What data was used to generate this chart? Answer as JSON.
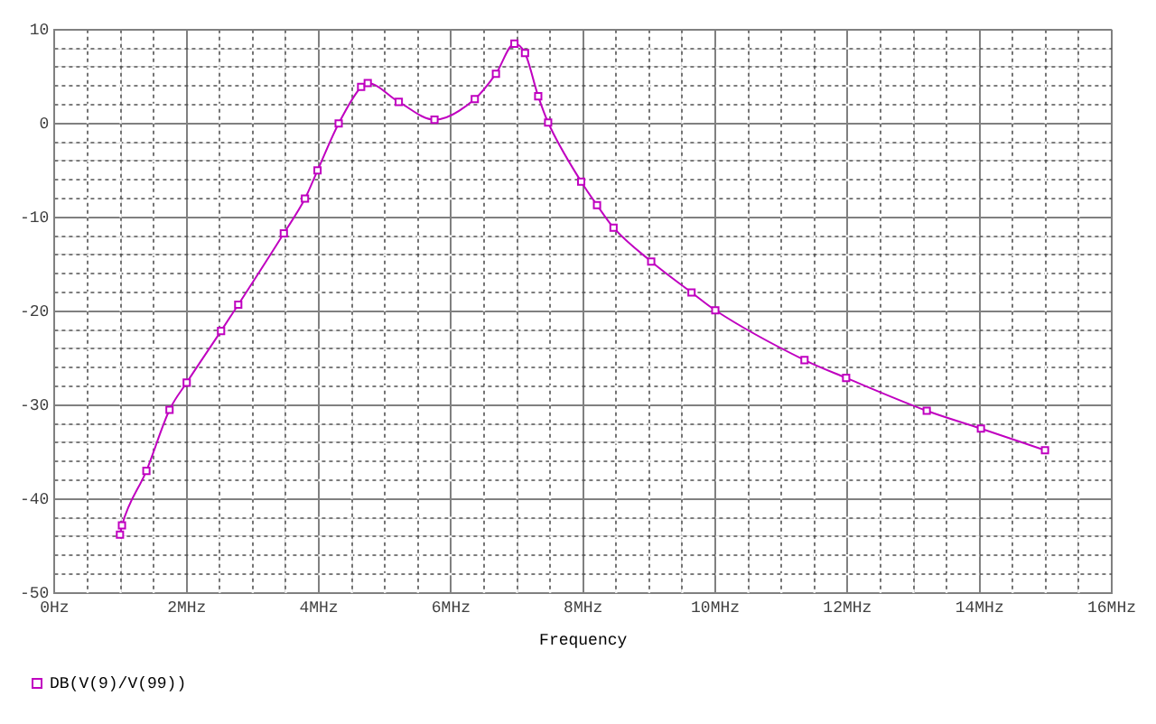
{
  "chart_data": {
    "type": "line",
    "xlabel": "Frequency",
    "legend": "bottom left",
    "grid": true,
    "marker": "square",
    "line_style": "solid",
    "x": [
      0.99,
      1.02,
      1.39,
      1.74,
      2.0,
      2.52,
      2.78,
      3.47,
      3.79,
      3.98,
      4.3,
      4.64,
      4.74,
      5.21,
      5.75,
      6.36,
      6.68,
      6.96,
      7.12,
      7.32,
      7.47,
      7.97,
      8.21,
      8.46,
      9.03,
      9.64,
      10.0,
      11.35,
      11.98,
      13.2,
      14.02,
      14.99
    ],
    "series": [
      {
        "name": "DB(V(9)/V(99))",
        "color": "#c000c0",
        "values": [
          -43.8,
          -42.8,
          -37.0,
          -30.5,
          -27.6,
          -22.1,
          -19.3,
          -11.7,
          -8.0,
          -5.0,
          0.0,
          3.9,
          4.3,
          2.3,
          0.4,
          2.6,
          5.3,
          8.5,
          7.5,
          2.9,
          0.1,
          -6.2,
          -8.7,
          -11.1,
          -14.7,
          -18.0,
          -19.9,
          -25.2,
          -27.1,
          -30.6,
          -32.5,
          -34.8
        ]
      }
    ],
    "xlim": [
      0,
      16
    ],
    "xticks": [
      {
        "value": 0,
        "label": "0Hz"
      },
      {
        "value": 0.5,
        "label": null
      },
      {
        "value": 1,
        "label": null
      },
      {
        "value": 1.5,
        "label": null
      },
      {
        "value": 2,
        "label": "2MHz"
      },
      {
        "value": 2.5,
        "label": null
      },
      {
        "value": 3,
        "label": null
      },
      {
        "value": 3.5,
        "label": null
      },
      {
        "value": 4,
        "label": "4MHz"
      },
      {
        "value": 4.5,
        "label": null
      },
      {
        "value": 5,
        "label": null
      },
      {
        "value": 5.5,
        "label": null
      },
      {
        "value": 6,
        "label": "6MHz"
      },
      {
        "value": 6.5,
        "label": null
      },
      {
        "value": 7,
        "label": null
      },
      {
        "value": 7.5,
        "label": null
      },
      {
        "value": 8,
        "label": "8MHz"
      },
      {
        "value": 8.5,
        "label": null
      },
      {
        "value": 9,
        "label": null
      },
      {
        "value": 9.5,
        "label": null
      },
      {
        "value": 10,
        "label": "10MHz"
      },
      {
        "value": 10.5,
        "label": null
      },
      {
        "value": 11,
        "label": null
      },
      {
        "value": 11.5,
        "label": null
      },
      {
        "value": 12,
        "label": "12MHz"
      },
      {
        "value": 12.5,
        "label": null
      },
      {
        "value": 13,
        "label": null
      },
      {
        "value": 13.5,
        "label": null
      },
      {
        "value": 14,
        "label": "14MHz"
      },
      {
        "value": 14.5,
        "label": null
      },
      {
        "value": 15,
        "label": null
      },
      {
        "value": 15.5,
        "label": null
      },
      {
        "value": 16,
        "label": "16MHz"
      }
    ],
    "ylim": [
      -50,
      10
    ],
    "yticks": [
      -50,
      {
        "value": -48,
        "label": null
      },
      {
        "value": -46,
        "label": null
      },
      {
        "value": -44,
        "label": null
      },
      {
        "value": -42,
        "label": null
      },
      -40,
      {
        "value": -38,
        "label": null
      },
      {
        "value": -36,
        "label": null
      },
      {
        "value": -34,
        "label": null
      },
      {
        "value": -32,
        "label": null
      },
      -30,
      {
        "value": -28,
        "label": null
      },
      {
        "value": -26,
        "label": null
      },
      {
        "value": -24,
        "label": null
      },
      {
        "value": -22,
        "label": null
      },
      -20,
      {
        "value": -18,
        "label": null
      },
      {
        "value": -16,
        "label": null
      },
      {
        "value": -14,
        "label": null
      },
      {
        "value": -12,
        "label": null
      },
      -10,
      {
        "value": -8,
        "label": null
      },
      {
        "value": -6,
        "label": null
      },
      {
        "value": -4,
        "label": null
      },
      {
        "value": -2,
        "label": null
      },
      0,
      {
        "value": 2,
        "label": null
      },
      {
        "value": 4,
        "label": null
      },
      {
        "value": 6,
        "label": null
      },
      {
        "value": 8,
        "label": null
      },
      10
    ]
  }
}
